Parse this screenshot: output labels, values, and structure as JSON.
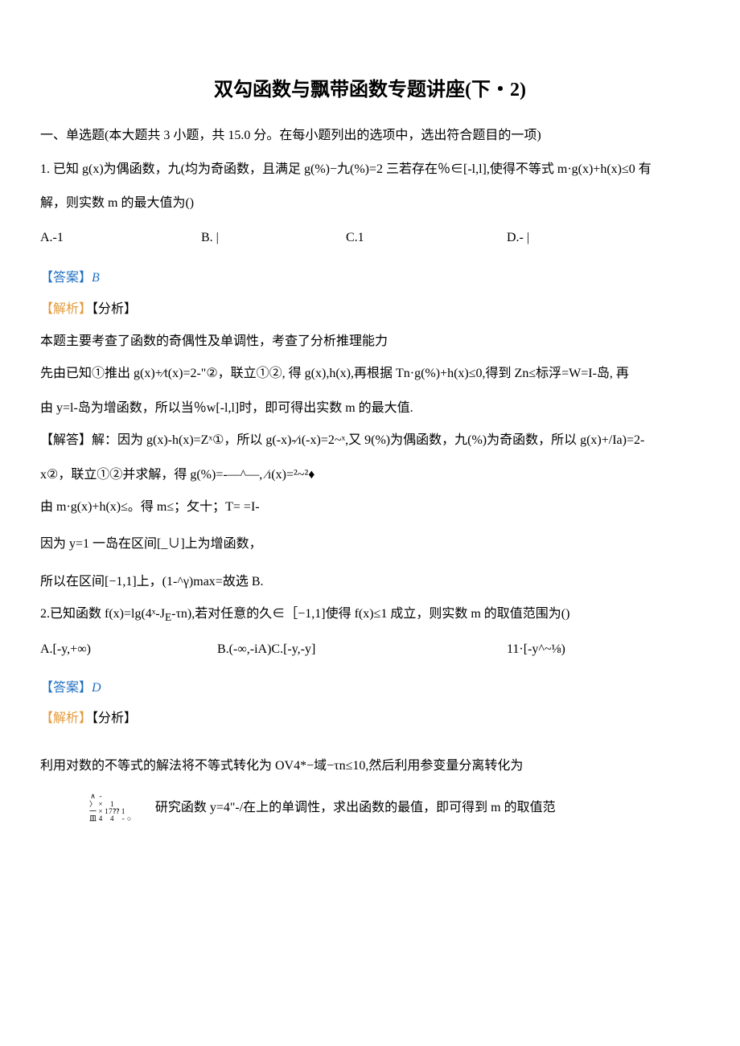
{
  "title": "双勾函数与飘带函数专题讲座(下・2)",
  "sectionIntro": "一、单选题(本大题共 3 小题，共 15.0 分。在每小题列出的选项中，选出符合题目的一项)",
  "q1": {
    "stemL1": "1. 已知 g(x)为偶函数，九(均为奇函数，且满足 g(%)−九(%)=2 三若存在％∈[-l,l],使得不等式 m·g(x)+h(x)≤0 有",
    "stemL2": "解，则实数 m 的最大值为()",
    "optA": "A.-1",
    "optB": "B. |",
    "optC": "C.1",
    "optD": "D.- |",
    "answerLabel": "【答案】",
    "answerLetter": "B",
    "analysisPrefix": "【解析】",
    "analysisSuffix": "【分析】",
    "line1": "本题主要考查了函数的奇偶性及单调性，考查了分析推理能力",
    "line2": "先由已知①推出 g(x)+∕t(x)=2-\"②，联立①②, 得 g(x),h(x),再根据 Tn·g(%)+h(x)≤0,得到 Zn≤标浮=W=I-岛, 再",
    "line3": "由 y=l-岛为增函数，所以当％w[-l,l]时，即可得出实数 m 的最大值.",
    "line4": "【解答】解：因为 g(x)-h(x)=Zˣ①，所以 g(-x)-∕ı(-x)=2~ˣ,又 9(%)为偶函数，九(%)为奇函数，所以 g(x)+/Ia)=2-",
    "line5": "x②，联立①②并求解，得 g(%)=-—^—,  ∕ı(x)=²~²♦",
    "line6": "由 m·g(x)+h(x)≤。得 m≤；攵十；T=        =I-",
    "line7": "因为 y=1 一岛在区间[_∪]上为增函数，",
    "line8": "所以在区间[−1,1]上，(1-^γ)max=故选 B."
  },
  "q2": {
    "stem": "2.已知函数 f(x)=lg(4ˣ-J<sub>E</sub>-τn),若对任意的久∈［−1,1]使得 f(x)≤1 成立，则实数 m 的取值范围为()",
    "optA": "A.[-y,+∞)",
    "optBC": "B.(-∞,-iA)C.[-y,-y]",
    "optD": "11·[-y^~⅛)",
    "answerLabel": "【答案】",
    "answerLetter": "D",
    "analysisPrefix": "【解析】",
    "analysisSuffix": "【分析】",
    "line1": "利用对数的不等式的解法将不等式转化为 OV4*−域−τn≤10,然后利用参变量分离转化为",
    "tiny": {
      "c1": [
        "∧",
        "〉",
        "一",
        "皿"
      ],
      "c2": [
        "-",
        "×",
        "×",
        "4"
      ],
      "c3": [
        "1",
        "17⁇",
        "4"
      ],
      "c4": [
        "1",
        "-"
      ],
      "c5": [
        "○"
      ]
    },
    "line2": "研究函数 y=4\"-/在上的单调性，求出函数的最值，即可得到 m 的取值范"
  },
  "colors": {
    "text": "#000000",
    "answer": "#1f6fc2",
    "analysis": "#e39a3a",
    "background": "#ffffff"
  }
}
